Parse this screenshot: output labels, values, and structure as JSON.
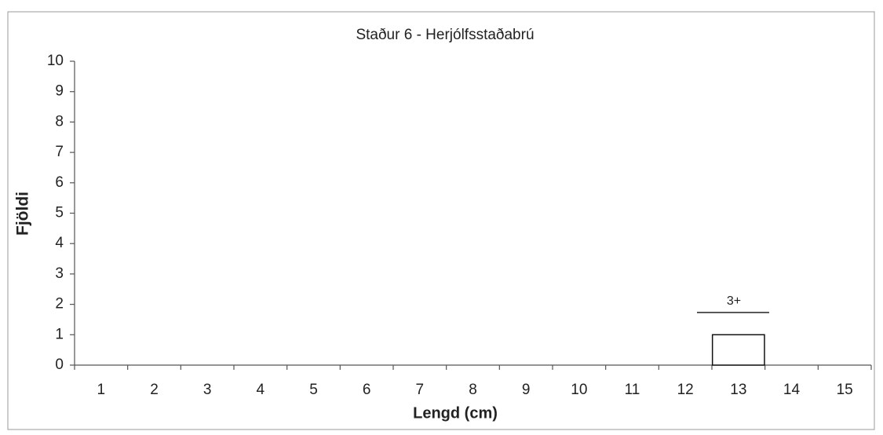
{
  "chart_data": {
    "type": "bar",
    "title": "Staður 6 - Herjólfsstaðabrú",
    "x_label": "Lengd (cm)",
    "y_label": "Fjöldi",
    "categories": [
      "1",
      "2",
      "3",
      "4",
      "5",
      "6",
      "7",
      "8",
      "9",
      "10",
      "11",
      "12",
      "13",
      "14",
      "15"
    ],
    "values": [
      0,
      0,
      0,
      0,
      0,
      0,
      0,
      0,
      0,
      0,
      0,
      0,
      1,
      0,
      0
    ],
    "color": "#ffffff",
    "ylim": [
      0,
      10
    ],
    "yticks": [
      0,
      1,
      2,
      3,
      4,
      5,
      6,
      7,
      8,
      9,
      10
    ],
    "annotations": [
      "3+"
    ]
  }
}
